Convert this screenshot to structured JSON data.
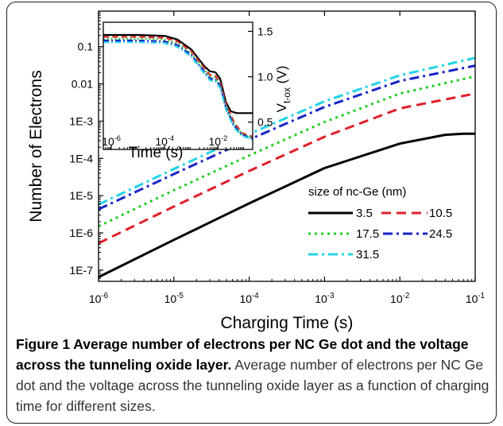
{
  "caption": {
    "label": "Figure 1",
    "title": "Average number of electrons per NC Ge dot and the voltage across the tunneling oxide layer.",
    "text": "Average number of electrons per NC Ge dot and the voltage across the tunneling oxide layer as a function of charging time for different sizes."
  },
  "chart_data": [
    {
      "type": "line",
      "xlabel": "Charging Time (s)",
      "ylabel": "Number of Electrons",
      "x_scale": "log",
      "y_scale": "log",
      "xlim": [
        1e-06,
        0.1
      ],
      "ylim": [
        5e-08,
        0.9
      ],
      "x_ticks": [
        1e-06,
        1e-05,
        0.0001,
        0.001,
        0.01,
        0.1
      ],
      "x_tick_labels": [
        {
          "base": "10",
          "exp": "-6"
        },
        {
          "base": "10",
          "exp": "-5"
        },
        {
          "base": "10",
          "exp": "-4"
        },
        {
          "base": "10",
          "exp": "-3"
        },
        {
          "base": "10",
          "exp": "-2"
        },
        {
          "base": "10",
          "exp": "-1"
        }
      ],
      "y_ticks": [
        1e-07,
        1e-06,
        1e-05,
        0.0001,
        0.001,
        0.01,
        0.1
      ],
      "y_tick_labels": [
        "1E-7",
        "1E-6",
        "1E-5",
        "1E-4",
        "1E-3",
        "0.01",
        "0.1"
      ],
      "legend": {
        "title": "size of nc-Ge (nm)",
        "position": "lower-right"
      },
      "series": [
        {
          "name": "3.5",
          "color": "#000000",
          "dash": "solid",
          "x": [
            1e-06,
            1e-05,
            0.0001,
            0.001,
            0.01,
            0.04,
            0.07,
            0.1
          ],
          "y": [
            6.5e-08,
            6.5e-07,
            6.2e-06,
            5.5e-05,
            0.00025,
            0.00043,
            0.00046,
            0.00046
          ]
        },
        {
          "name": "10.5",
          "color": "#e0202a",
          "dash": "dash",
          "x": [
            1e-06,
            1e-05,
            0.0001,
            0.001,
            0.01,
            0.1
          ],
          "y": [
            5.3e-07,
            5.1e-06,
            4.6e-05,
            0.00038,
            0.0022,
            0.0055
          ]
        },
        {
          "name": "17.5",
          "color": "#22cc22",
          "dash": "dot",
          "x": [
            1e-06,
            1e-05,
            0.0001,
            0.001,
            0.01,
            0.1
          ],
          "y": [
            1.5e-06,
            1.4e-05,
            0.00012,
            0.00095,
            0.0055,
            0.016
          ]
        },
        {
          "name": "24.5",
          "color": "#1a24c8",
          "dash": "dashdot",
          "x": [
            1e-06,
            1e-05,
            0.0001,
            0.001,
            0.01,
            0.1
          ],
          "y": [
            4.3e-06,
            3.8e-05,
            0.00032,
            0.0024,
            0.012,
            0.031
          ]
        },
        {
          "name": "31.5",
          "color": "#22d4e6",
          "dash": "dashdot",
          "x": [
            1e-06,
            1e-05,
            0.0001,
            0.001,
            0.01,
            0.1
          ],
          "y": [
            5.8e-06,
            5.2e-05,
            0.00045,
            0.0034,
            0.017,
            0.05
          ]
        }
      ]
    },
    {
      "type": "line",
      "inset": true,
      "xlabel": "Time (s)",
      "ylabel": {
        "main": "V",
        "subscript": "t-ox",
        "unit": "(V)"
      },
      "x_scale": "log",
      "y_scale": "linear",
      "xlim": [
        5e-07,
        0.2
      ],
      "ylim": [
        0.2,
        1.6
      ],
      "x_ticks": [
        1e-06,
        0.0001,
        0.01
      ],
      "x_tick_labels": [
        {
          "base": "10",
          "exp": "-6"
        },
        {
          "base": "10",
          "exp": "-4"
        },
        {
          "base": "10",
          "exp": "-2"
        }
      ],
      "y_ticks": [
        0.5,
        1.0,
        1.5
      ],
      "y_tick_labels": [
        "0.5",
        "1.0",
        "1.5"
      ],
      "series": [
        {
          "color": "#000000",
          "dash": "solid",
          "x": [
            5e-07,
            1e-05,
            0.0001,
            0.0003,
            0.001,
            0.003,
            0.005,
            0.008,
            0.012,
            0.02,
            0.03,
            0.05,
            0.1,
            0.2
          ],
          "y": [
            1.46,
            1.46,
            1.45,
            1.41,
            1.3,
            1.12,
            1.06,
            1.05,
            0.98,
            0.72,
            0.62,
            0.6,
            0.6,
            0.6
          ]
        },
        {
          "color": "#e0202a",
          "dash": "dash",
          "x": [
            5e-07,
            1e-05,
            0.0001,
            0.0003,
            0.001,
            0.003,
            0.005,
            0.008,
            0.012,
            0.02,
            0.04,
            0.08,
            0.2
          ],
          "y": [
            1.44,
            1.44,
            1.43,
            1.39,
            1.28,
            1.1,
            1.02,
            1.01,
            0.94,
            0.7,
            0.5,
            0.38,
            0.34
          ]
        },
        {
          "color": "#22cc22",
          "dash": "dot",
          "x": [
            5e-07,
            1e-05,
            0.0001,
            0.0003,
            0.001,
            0.003,
            0.005,
            0.008,
            0.012,
            0.02,
            0.04,
            0.08,
            0.2
          ],
          "y": [
            1.42,
            1.42,
            1.41,
            1.37,
            1.26,
            1.08,
            1.0,
            0.99,
            0.92,
            0.68,
            0.48,
            0.37,
            0.33
          ]
        },
        {
          "color": "#1a24c8",
          "dash": "dashdot",
          "x": [
            5e-07,
            1e-05,
            0.0001,
            0.0003,
            0.001,
            0.003,
            0.005,
            0.008,
            0.012,
            0.02,
            0.04,
            0.08,
            0.2
          ],
          "y": [
            1.4,
            1.4,
            1.39,
            1.35,
            1.24,
            1.06,
            0.98,
            0.97,
            0.9,
            0.66,
            0.46,
            0.36,
            0.32
          ]
        },
        {
          "color": "#22d4e6",
          "dash": "dashdot",
          "x": [
            5e-07,
            1e-05,
            0.0001,
            0.0003,
            0.001,
            0.003,
            0.005,
            0.008,
            0.012,
            0.02,
            0.04,
            0.08,
            0.2
          ],
          "y": [
            1.38,
            1.38,
            1.37,
            1.33,
            1.22,
            1.04,
            0.96,
            0.95,
            0.88,
            0.64,
            0.44,
            0.35,
            0.31
          ]
        }
      ]
    }
  ]
}
